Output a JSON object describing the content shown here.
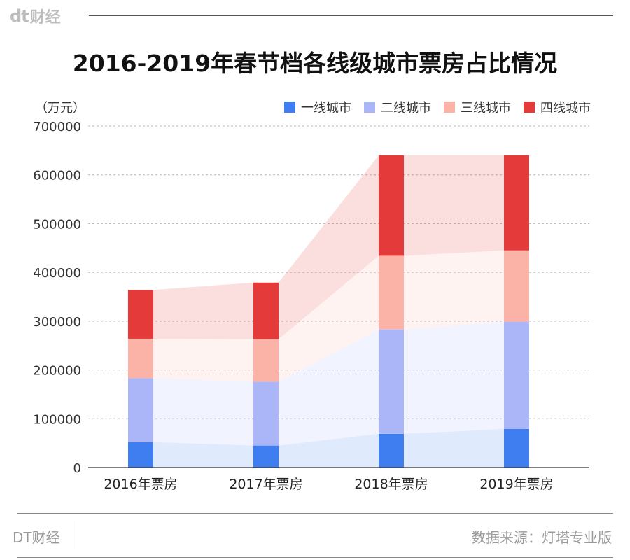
{
  "brand": {
    "logo": "dt",
    "name": "财经"
  },
  "chart_data": {
    "type": "bar",
    "title": "2016-2019年春节档各线级城市票房占比情况",
    "unit_label": "（万元）",
    "categories": [
      "2016年票房",
      "2017年票房",
      "2018年票房",
      "2019年票房"
    ],
    "series": [
      {
        "name": "一线城市",
        "color": "#3f7ef0",
        "values": [
          52000,
          45000,
          69000,
          79000
        ]
      },
      {
        "name": "二线城市",
        "color": "#aab6f7",
        "values": [
          131000,
          131000,
          214000,
          220000
        ]
      },
      {
        "name": "三线城市",
        "color": "#fbb3a7",
        "values": [
          81000,
          87000,
          151000,
          146000
        ]
      },
      {
        "name": "四线城市",
        "color": "#e53a3a",
        "values": [
          100000,
          116000,
          206000,
          195000
        ]
      }
    ],
    "ylim": [
      0,
      700000
    ],
    "yticks": [
      "0",
      "100000",
      "200000",
      "300000",
      "400000",
      "500000",
      "600000",
      "700000"
    ],
    "grid": true,
    "legend_position": "top-right",
    "stacked": true
  },
  "footer": {
    "left": "DT财经",
    "source": "数据来源：灯塔专业版"
  }
}
